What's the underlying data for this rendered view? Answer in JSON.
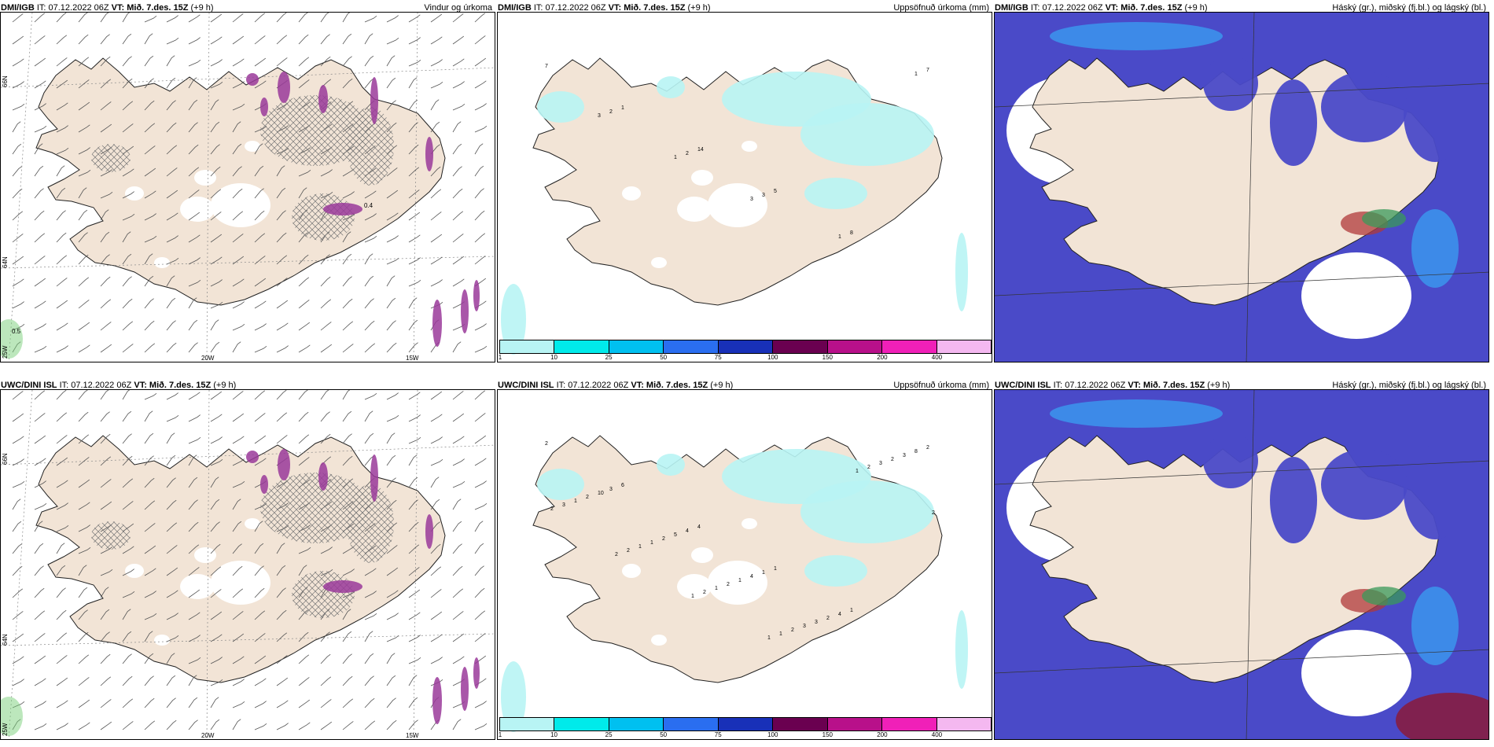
{
  "panels": [
    {
      "model": "DMI/IGB",
      "it": "IT: 07.12.2022 06Z",
      "vt_label": "VT:",
      "vt": "Mið. 7.des. 15Z",
      "lead": "(+9 h)",
      "title": "Vindur og úrkoma",
      "type": "wind"
    },
    {
      "model": "DMI/IGB",
      "it": "IT: 07.12.2022 06Z",
      "vt_label": "VT:",
      "vt": "Mið. 7.des. 15Z",
      "lead": "(+9 h)",
      "title": "Uppsöfnuð úrkoma (mm)",
      "type": "precip"
    },
    {
      "model": "DMI/IGB",
      "it": "IT: 07.12.2022 06Z",
      "vt_label": "VT:",
      "vt": "Mið. 7.des. 15Z",
      "lead": "(+9 h)",
      "title": "Háský (gr.), miðský (fj.bl.) og lágský (bl.)",
      "type": "cloud"
    },
    {
      "model": "UWC/DINI ISL",
      "it": "IT: 07.12.2022 06Z",
      "vt_label": "VT:",
      "vt": "Mið. 7.des. 15Z",
      "lead": "(+9 h)",
      "title": "",
      "type": "wind"
    },
    {
      "model": "UWC/DINI ISL",
      "it": "IT: 07.12.2022 06Z",
      "vt_label": "VT:",
      "vt": "Mið. 7.des. 15Z",
      "lead": "(+9 h)",
      "title": "Uppsöfnuð úrkoma (mm)",
      "type": "precip"
    },
    {
      "model": "UWC/DINI ISL",
      "it": "IT: 07.12.2022 06Z",
      "vt_label": "VT:",
      "vt": "Mið. 7.des. 15Z",
      "lead": "(+9 h)",
      "title": "Háský (gr.), miðský (fj.bl.) og lágský (bl.)",
      "type": "cloud"
    }
  ],
  "axis_labels": {
    "lat_66": "66N",
    "lat_64": "64N",
    "lon_25": "25W",
    "lon_20": "20W",
    "lon_15": "15W"
  },
  "wind_values": {
    "top": [
      "0.5",
      "0.4"
    ]
  },
  "precip_numbers": {
    "top": [
      "7",
      "1",
      "14",
      "5",
      "8",
      "7",
      "2",
      "2",
      "3",
      "1",
      "1",
      "3",
      "1",
      "3"
    ],
    "bottom": [
      "2",
      "6",
      "4",
      "1",
      "1",
      "2",
      "3",
      "4",
      "1",
      "4",
      "8",
      "10",
      "5",
      "4",
      "2",
      "3",
      "2",
      "2",
      "1",
      "3",
      "2",
      "1",
      "1",
      "2",
      "3",
      "3",
      "3",
      "1",
      "1",
      "2",
      "2",
      "2",
      "2",
      "2",
      "1",
      "1",
      "2",
      "2",
      "1",
      "1"
    ]
  },
  "colorbar": {
    "ticks": [
      "1",
      "10",
      "25",
      "50",
      "75",
      "100",
      "150",
      "200",
      "400"
    ],
    "colors": [
      "#b8f4f4",
      "#00eaea",
      "#00c0f0",
      "#2a6ef0",
      "#1830b8",
      "#6a0050",
      "#b8108a",
      "#f020b8",
      "#f4b8f0"
    ]
  },
  "colors": {
    "land": "#f2e4d6",
    "water": "#ffffff",
    "precip_light": "#b8f4f4",
    "cloud_high": "#4a4ac8",
    "cloud_blue": "#3a9af0",
    "purple": "#9a3a9a"
  }
}
